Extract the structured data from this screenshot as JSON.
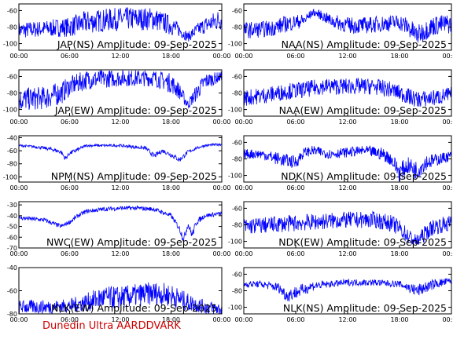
{
  "footer": "Dunedin Ultra AARDDVARK",
  "colors": {
    "trace": "#0000ff",
    "frame": "#000000",
    "footer": "#cc0000",
    "background": "#ffffff"
  },
  "chart_data": [
    {
      "type": "line",
      "title": "JAP(NS) Amplitude: 09-Sep-2025",
      "column": "left",
      "xticks": [
        "00:00",
        "06:00",
        "12:00",
        "18:00",
        "00:00"
      ],
      "yticks": [
        -100,
        -80,
        -60
      ],
      "ylim": [
        -108,
        -52
      ],
      "series": [
        {
          "x": [
            0,
            3,
            6,
            8,
            10,
            12,
            14,
            16,
            18,
            19,
            20,
            21,
            22,
            24
          ],
          "mean": [
            -84,
            -82,
            -80,
            -74,
            -72,
            -70,
            -70,
            -70,
            -78,
            -84,
            -92,
            -84,
            -78,
            -70
          ],
          "spread": [
            10,
            10,
            12,
            14,
            14,
            14,
            14,
            14,
            12,
            8,
            6,
            8,
            10,
            14
          ]
        }
      ]
    },
    {
      "type": "line",
      "title": "JAP(EW) Amplitude: 09-Sep-2025",
      "column": "left",
      "xticks": [
        "00:00",
        "06:00",
        "12:00",
        "18:00",
        "00:00"
      ],
      "yticks": [
        -100,
        -80,
        -60
      ],
      "ylim": [
        -108,
        -52
      ],
      "series": [
        {
          "x": [
            0,
            3,
            5,
            6,
            8,
            12,
            16,
            18,
            19,
            20,
            21,
            22,
            24
          ],
          "mean": [
            -88,
            -86,
            -80,
            -72,
            -64,
            -62,
            -62,
            -68,
            -78,
            -94,
            -80,
            -66,
            -60
          ],
          "spread": [
            14,
            14,
            14,
            12,
            12,
            10,
            10,
            12,
            10,
            6,
            10,
            10,
            6
          ]
        }
      ]
    },
    {
      "type": "line",
      "title": "NPM(NS) Amplitude: 09-Sep-2025",
      "column": "left",
      "xticks": [
        "00:00",
        "06:00",
        "12:00",
        "18:00",
        "00:00"
      ],
      "yticks": [
        -100,
        -80,
        -60,
        -40
      ],
      "ylim": [
        -108,
        -37
      ],
      "series": [
        {
          "x": [
            0,
            2,
            4,
            5,
            5.5,
            6,
            7,
            8,
            12,
            15,
            16,
            17,
            18,
            19,
            20,
            21,
            22,
            24
          ],
          "mean": [
            -52,
            -54,
            -58,
            -62,
            -72,
            -64,
            -58,
            -52,
            -52,
            -56,
            -68,
            -60,
            -66,
            -74,
            -62,
            -56,
            -52,
            -50
          ],
          "spread": [
            2,
            2,
            3,
            3,
            4,
            3,
            3,
            2,
            2,
            3,
            4,
            3,
            4,
            4,
            3,
            2,
            2,
            2
          ]
        }
      ]
    },
    {
      "type": "line",
      "title": "NWC(EW) Amplitude: 09-Sep-2025",
      "column": "left",
      "xticks": [
        "00:00",
        "06:00",
        "12:00",
        "18:00",
        "00:00"
      ],
      "yticks": [
        -70,
        -60,
        -50,
        -40,
        -30
      ],
      "ylim": [
        -70,
        -27
      ],
      "series": [
        {
          "x": [
            0,
            3,
            5,
            6,
            7,
            8,
            10,
            12,
            14,
            16,
            18,
            19,
            19.5,
            20,
            20.5,
            21,
            22,
            24
          ],
          "mean": [
            -42,
            -44,
            -50,
            -46,
            -40,
            -36,
            -34,
            -33,
            -33,
            -34,
            -40,
            -52,
            -62,
            -48,
            -58,
            -46,
            -40,
            -38
          ],
          "spread": [
            2,
            2,
            2,
            2,
            2,
            2,
            2,
            2,
            2,
            2,
            2,
            3,
            4,
            3,
            4,
            3,
            2,
            2
          ]
        }
      ]
    },
    {
      "type": "line",
      "title": "NLK(EW) Amplitude: 09-Sep-2025",
      "column": "left",
      "xticks": [
        "00:00",
        "06:00",
        "12:00",
        "18:00",
        "00:00"
      ],
      "yticks": [
        -80,
        -60,
        -40
      ],
      "ylim": [
        -80,
        -40
      ],
      "series": [
        {
          "x": [
            0,
            4,
            6,
            8,
            10,
            12,
            14,
            16,
            18,
            20,
            22,
            24
          ],
          "mean": [
            -74,
            -74,
            -73,
            -70,
            -66,
            -66,
            -64,
            -62,
            -64,
            -70,
            -74,
            -76
          ],
          "spread": [
            6,
            6,
            6,
            8,
            10,
            10,
            10,
            10,
            10,
            8,
            6,
            6
          ]
        }
      ]
    },
    {
      "type": "line",
      "title": "NAA(NS) Amplitude: 09-Sep-2025",
      "column": "right",
      "xticks": [
        "00:00",
        "06:00",
        "12:00",
        "18:00",
        "00:00"
      ],
      "yticks": [
        -100,
        -80,
        -60
      ],
      "ylim": [
        -108,
        -52
      ],
      "series": [
        {
          "x": [
            0,
            3,
            5,
            7,
            8,
            9,
            10,
            12,
            14,
            16,
            18,
            19,
            20,
            21,
            22,
            24
          ],
          "mean": [
            -84,
            -82,
            -76,
            -72,
            -62,
            -66,
            -72,
            -78,
            -78,
            -76,
            -74,
            -80,
            -90,
            -84,
            -78,
            -76
          ],
          "spread": [
            10,
            10,
            10,
            8,
            4,
            6,
            8,
            10,
            10,
            10,
            10,
            12,
            12,
            12,
            12,
            12
          ]
        }
      ]
    },
    {
      "type": "line",
      "title": "NAA(EW) Amplitude: 09-Sep-2025",
      "column": "right",
      "xticks": [
        "00:00",
        "06:00",
        "12:00",
        "18:00",
        "00:00"
      ],
      "yticks": [
        -100,
        -80,
        -60
      ],
      "ylim": [
        -108,
        -52
      ],
      "series": [
        {
          "x": [
            0,
            3,
            5,
            7,
            9,
            12,
            15,
            17,
            19,
            20,
            22,
            24
          ],
          "mean": [
            -86,
            -82,
            -78,
            -76,
            -72,
            -72,
            -72,
            -76,
            -84,
            -88,
            -86,
            -82
          ],
          "spread": [
            10,
            10,
            10,
            10,
            10,
            10,
            10,
            10,
            10,
            10,
            10,
            10
          ]
        }
      ]
    },
    {
      "type": "line",
      "title": "NDK(NS) Amplitude: 09-Sep-2025",
      "column": "right",
      "xticks": [
        "00:00",
        "06:00",
        "12:00",
        "18:00",
        "00:00"
      ],
      "yticks": [
        -100,
        -80,
        -60
      ],
      "ylim": [
        -108,
        -52
      ],
      "series": [
        {
          "x": [
            0,
            2,
            4,
            6,
            7,
            8,
            10,
            12,
            14,
            16,
            17,
            18,
            19,
            20,
            21,
            22,
            24
          ],
          "mean": [
            -74,
            -74,
            -80,
            -84,
            -72,
            -70,
            -74,
            -72,
            -70,
            -74,
            -80,
            -96,
            -88,
            -94,
            -84,
            -82,
            -76
          ],
          "spread": [
            6,
            6,
            8,
            8,
            6,
            6,
            6,
            6,
            6,
            8,
            8,
            12,
            10,
            12,
            10,
            8,
            6
          ]
        }
      ]
    },
    {
      "type": "line",
      "title": "NDK(EW) Amplitude: 09-Sep-2025",
      "column": "right",
      "xticks": [
        "00:00",
        "06:00",
        "12:00",
        "18:00",
        "00:00"
      ],
      "yticks": [
        -100,
        -80,
        -60
      ],
      "ylim": [
        -108,
        -52
      ],
      "series": [
        {
          "x": [
            0,
            3,
            6,
            9,
            12,
            15,
            17,
            18,
            19,
            20,
            21,
            22,
            24
          ],
          "mean": [
            -82,
            -80,
            -78,
            -76,
            -74,
            -74,
            -78,
            -84,
            -94,
            -100,
            -90,
            -82,
            -78
          ],
          "spread": [
            10,
            10,
            10,
            10,
            10,
            10,
            10,
            10,
            10,
            8,
            10,
            10,
            10
          ]
        }
      ]
    },
    {
      "type": "line",
      "title": "NLK(NS) Amplitude: 09-Sep-2025",
      "column": "right",
      "xticks": [
        "00:00",
        "06:00",
        "12:00",
        "18:00",
        "00:00"
      ],
      "yticks": [
        -100,
        -80,
        -60
      ],
      "ylim": [
        -108,
        -52
      ],
      "series": [
        {
          "x": [
            0,
            2,
            4,
            5,
            6,
            8,
            10,
            12,
            15,
            18,
            20,
            22,
            24
          ],
          "mean": [
            -72,
            -72,
            -76,
            -86,
            -82,
            -74,
            -72,
            -70,
            -70,
            -72,
            -80,
            -72,
            -68
          ],
          "spread": [
            4,
            4,
            6,
            8,
            8,
            6,
            4,
            4,
            4,
            4,
            8,
            6,
            4
          ]
        }
      ]
    }
  ]
}
